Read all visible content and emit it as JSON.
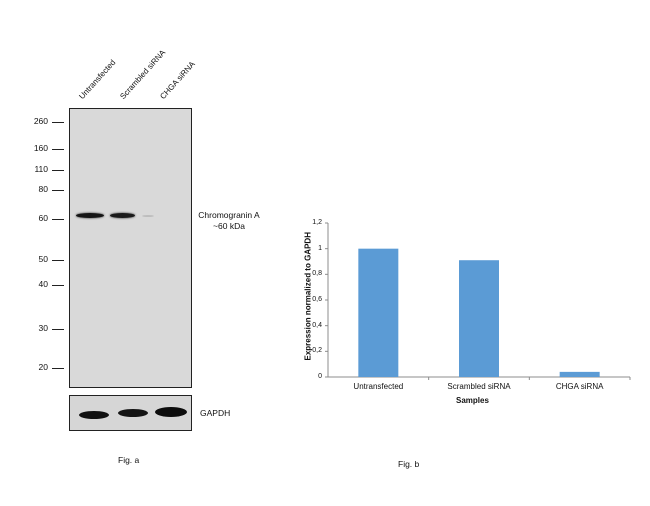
{
  "blot": {
    "lanes": [
      "Untransfected",
      "Scrambled siRNA",
      "CHGA siRNA"
    ],
    "mw_markers": [
      "260",
      "160",
      "110",
      "80",
      "60",
      "50",
      "40",
      "30",
      "20"
    ],
    "target_label_line1": "Chromogranin A",
    "target_label_line2": "~60 kDa",
    "loading_control_label": "GAPDH",
    "figure_label": "Fig. a"
  },
  "chart_data": {
    "type": "bar",
    "categories": [
      "Untransfected",
      "Scrambled siRNA",
      "CHGA siRNA"
    ],
    "values": [
      1.0,
      0.91,
      0.04
    ],
    "xlabel": "Samples",
    "ylabel": "Expression  normalized to GAPDH",
    "ylim": [
      0,
      1.2
    ],
    "yticks": [
      "0",
      "0,2",
      "0,4",
      "0,6",
      "0,8",
      "1",
      "1,2"
    ],
    "bar_color": "#5b9bd5",
    "grid": false,
    "figure_label": "Fig. b"
  }
}
